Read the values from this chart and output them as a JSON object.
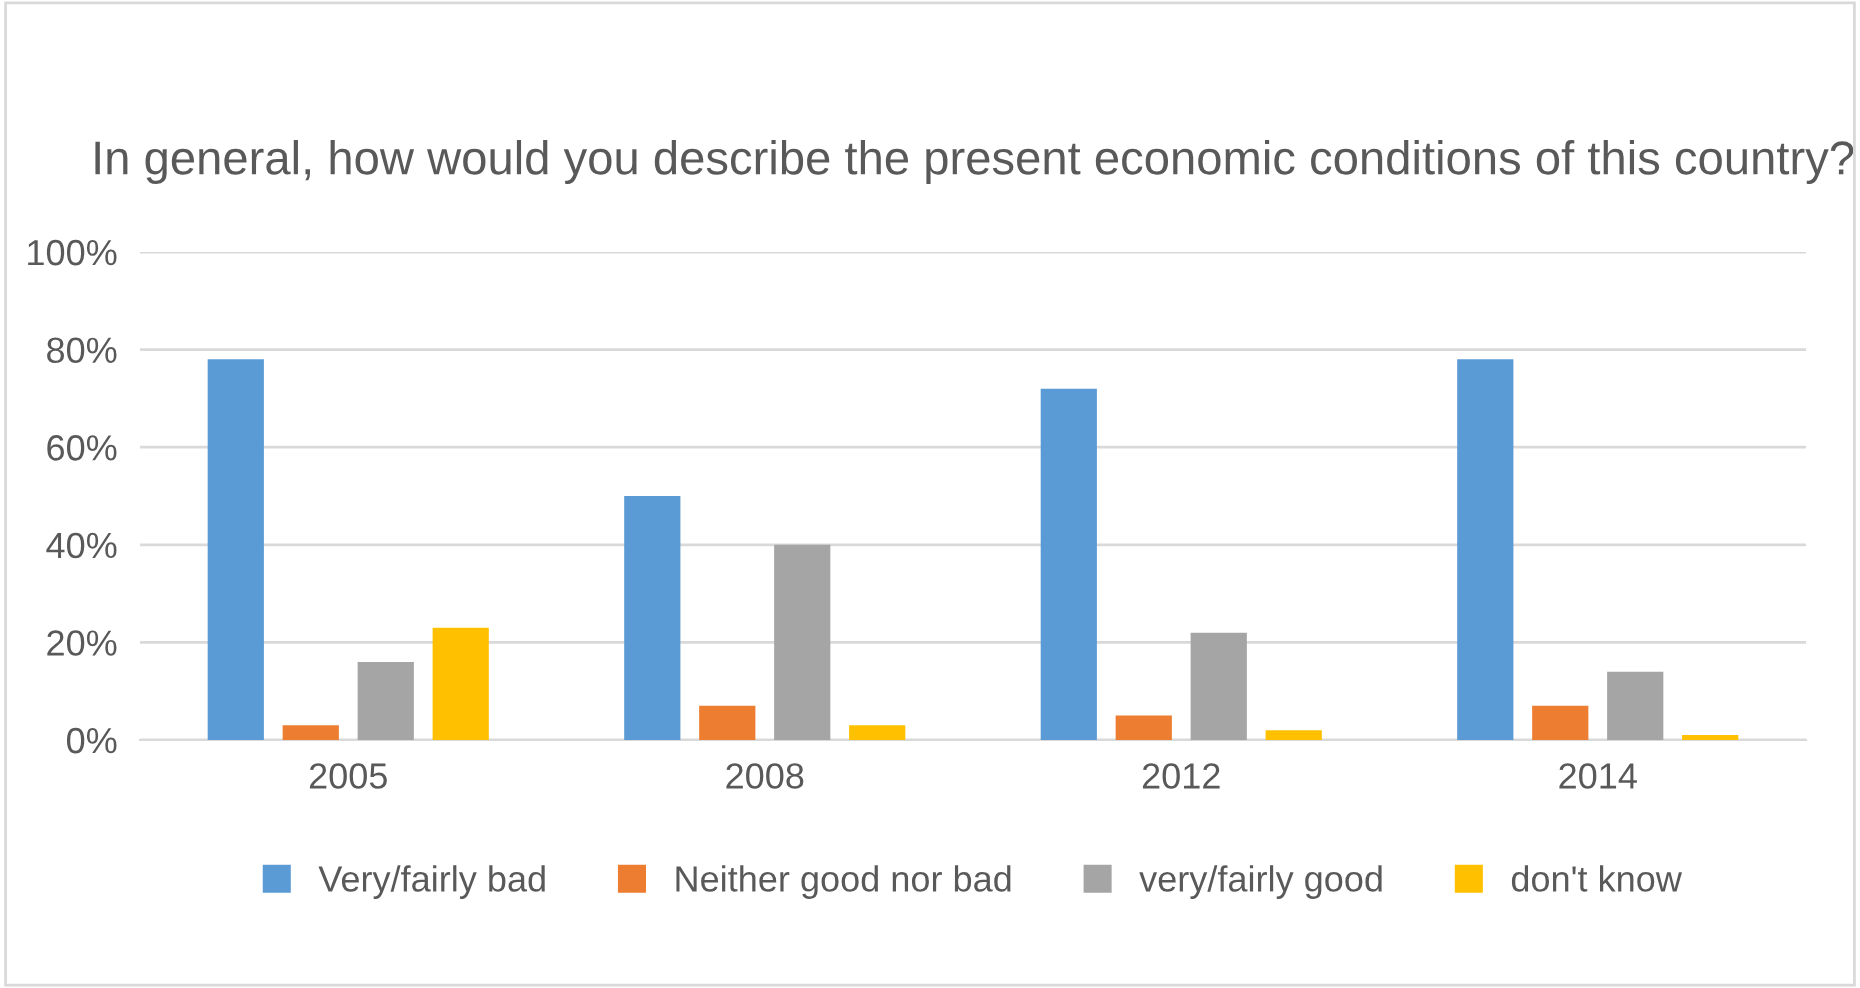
{
  "chart_data": {
    "type": "bar",
    "title": "In general, how would you describe the present economic conditions of this country?",
    "categories": [
      "2005",
      "2008",
      "2012",
      "2014"
    ],
    "series": [
      {
        "name": "Very/fairly bad",
        "color": "#5b9bd5",
        "values": [
          78,
          50,
          72,
          78
        ]
      },
      {
        "name": "Neither good nor bad",
        "color": "#ed7d31",
        "values": [
          3,
          7,
          5,
          7
        ]
      },
      {
        "name": "very/fairly good",
        "color": "#a5a5a5",
        "values": [
          16,
          40,
          22,
          14
        ]
      },
      {
        "name": "don't know",
        "color": "#ffc000",
        "values": [
          23,
          3,
          2,
          1
        ]
      }
    ],
    "ylim": [
      0,
      100
    ],
    "yticks": [
      {
        "value": 0,
        "label": "0%"
      },
      {
        "value": 20,
        "label": "20%"
      },
      {
        "value": 40,
        "label": "40%"
      },
      {
        "value": 60,
        "label": "60%"
      },
      {
        "value": 80,
        "label": "80%"
      },
      {
        "value": 100,
        "label": "100%"
      }
    ],
    "grid": "y",
    "legend": "bottom"
  }
}
